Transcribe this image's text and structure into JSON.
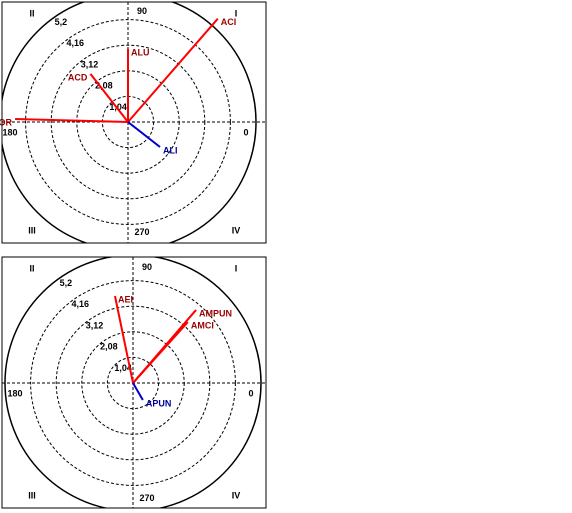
{
  "chart_data": [
    {
      "type": "polar",
      "rlim": [
        0,
        5.2
      ],
      "rticks": [
        {
          "value": 1.04,
          "label": "1,04"
        },
        {
          "value": 2.08,
          "label": "2,08"
        },
        {
          "value": 3.12,
          "label": "3,12"
        },
        {
          "value": 4.16,
          "label": "4,16"
        },
        {
          "value": 5.2,
          "label": "5,2"
        }
      ],
      "angle_ticks": [
        0,
        90,
        180,
        270
      ],
      "quadrants": [
        "I",
        "II",
        "III",
        "IV"
      ],
      "series": [
        {
          "name": "ACI",
          "color": "#ff0000",
          "angle": 49,
          "magnitude": 5.56
        },
        {
          "name": "ALU",
          "color": "#ff0000",
          "angle": 90,
          "magnitude": 2.97
        },
        {
          "name": "ACD",
          "color": "#ff0000",
          "angle": 128,
          "magnitude": 2.48
        },
        {
          "name": "APOR",
          "color": "#ff0000",
          "angle": 178.5,
          "magnitude": 4.59
        },
        {
          "name": "ALI",
          "color": "#0000cc",
          "angle": 322,
          "magnitude": 1.65
        }
      ]
    },
    {
      "type": "polar",
      "rlim": [
        0,
        5.2
      ],
      "rticks": [
        {
          "value": 1.04,
          "label": "1,04"
        },
        {
          "value": 2.08,
          "label": "2,08"
        },
        {
          "value": 3.12,
          "label": "3,12"
        },
        {
          "value": 4.16,
          "label": "4,16"
        },
        {
          "value": 5.2,
          "label": "5,2"
        }
      ],
      "angle_ticks": [
        0,
        90,
        180,
        270
      ],
      "quadrants": [
        "I",
        "II",
        "III",
        "IV"
      ],
      "series": [
        {
          "name": "AEI",
          "color": "#ff0000",
          "angle": 101.7,
          "magnitude": 3.61
        },
        {
          "name": "AMPUN",
          "color": "#ff0000",
          "angle": 49.2,
          "magnitude": 3.92
        },
        {
          "name": "AMCI",
          "color": "#ff0000",
          "angle": 48,
          "magnitude": 3.33
        },
        {
          "name": "APUN",
          "color": "#0000cc",
          "angle": 300,
          "magnitude": 0.8
        }
      ]
    }
  ]
}
